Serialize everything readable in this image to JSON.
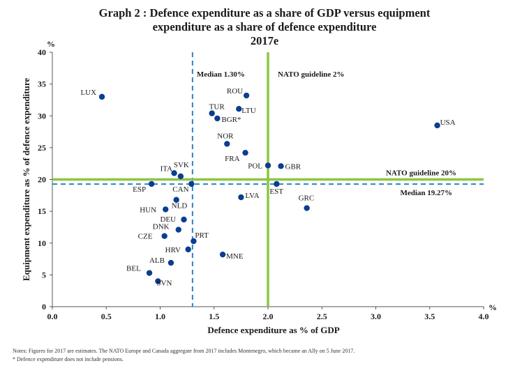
{
  "title_lines": [
    "Graph 2 : Defence expenditure as a share of GDP versus equipment",
    "expenditure as a share of defence expenditure",
    "2017e"
  ],
  "notes": [
    "Notes: Figures for 2017 are estimates. The NATO Europe and Canada aggregate from 2017 includes Montenegro, which became an Ally on 5 June 2017.",
    "*   Defence expenditure does not include pensions."
  ],
  "chart_data": {
    "type": "scatter",
    "xlabel": "Defence expenditure as % of GDP",
    "ylabel": "Equipment expenditure as % of defence expenditure",
    "x_unit": "%",
    "y_unit": "%",
    "xlim": [
      0,
      4
    ],
    "ylim": [
      0,
      40
    ],
    "x_ticks": [
      "0.0",
      "0.5",
      "1.0",
      "1.5",
      "2.0",
      "2.5",
      "3.0",
      "3.5",
      "4.0"
    ],
    "y_ticks": [
      "0",
      "5",
      "10",
      "15",
      "20",
      "25",
      "30",
      "35",
      "40"
    ],
    "grid": false,
    "point_color": "#0b3d91",
    "points": [
      {
        "label": "LUX",
        "x": 0.46,
        "y": 33.0
      },
      {
        "label": "ROU",
        "x": 1.8,
        "y": 33.2
      },
      {
        "label": "TUR",
        "x": 1.48,
        "y": 30.4
      },
      {
        "label": "LTU",
        "x": 1.73,
        "y": 31.1
      },
      {
        "label": "BGR*",
        "x": 1.53,
        "y": 29.6
      },
      {
        "label": "USA",
        "x": 3.57,
        "y": 28.5
      },
      {
        "label": "NOR",
        "x": 1.62,
        "y": 25.6
      },
      {
        "label": "FRA",
        "x": 1.79,
        "y": 24.2
      },
      {
        "label": "POL",
        "x": 2.0,
        "y": 22.2
      },
      {
        "label": "GBR",
        "x": 2.12,
        "y": 22.1
      },
      {
        "label": "ITA",
        "x": 1.13,
        "y": 21.0
      },
      {
        "label": "SVK",
        "x": 1.19,
        "y": 20.5
      },
      {
        "label": "ESP",
        "x": 0.92,
        "y": 19.3
      },
      {
        "label": "CAN",
        "x": 1.29,
        "y": 19.3
      },
      {
        "label": "EST",
        "x": 2.08,
        "y": 19.3
      },
      {
        "label": "LVA",
        "x": 1.75,
        "y": 17.2
      },
      {
        "label": "GRC",
        "x": 2.36,
        "y": 15.5
      },
      {
        "label": "HUN",
        "x": 1.05,
        "y": 15.3
      },
      {
        "label": "NLD",
        "x": 1.15,
        "y": 16.8
      },
      {
        "label": "DEU",
        "x": 1.22,
        "y": 13.7
      },
      {
        "label": "DNK",
        "x": 1.17,
        "y": 12.1
      },
      {
        "label": "CZE",
        "x": 1.04,
        "y": 11.1
      },
      {
        "label": "PRT",
        "x": 1.31,
        "y": 10.3
      },
      {
        "label": "HRV",
        "x": 1.26,
        "y": 9.0
      },
      {
        "label": "MNE",
        "x": 1.58,
        "y": 8.2
      },
      {
        "label": "ALB",
        "x": 1.1,
        "y": 6.9
      },
      {
        "label": "BEL",
        "x": 0.9,
        "y": 5.3
      },
      {
        "label": "SVN",
        "x": 0.98,
        "y": 4.0
      }
    ],
    "reference_lines": [
      {
        "label": "Median 1.30%",
        "axis": "x",
        "value": 1.3,
        "style": "dashed",
        "color": "#2f80c8"
      },
      {
        "label": "NATO guideline 2%",
        "axis": "x",
        "value": 2.0,
        "style": "solid",
        "color": "#8cc63f"
      },
      {
        "label": "NATO guideline 20%",
        "axis": "y",
        "value": 20.0,
        "style": "solid",
        "color": "#8cc63f"
      },
      {
        "label": "Median 19.27%",
        "axis": "y",
        "value": 19.27,
        "style": "dashed",
        "color": "#2f80c8"
      }
    ]
  }
}
